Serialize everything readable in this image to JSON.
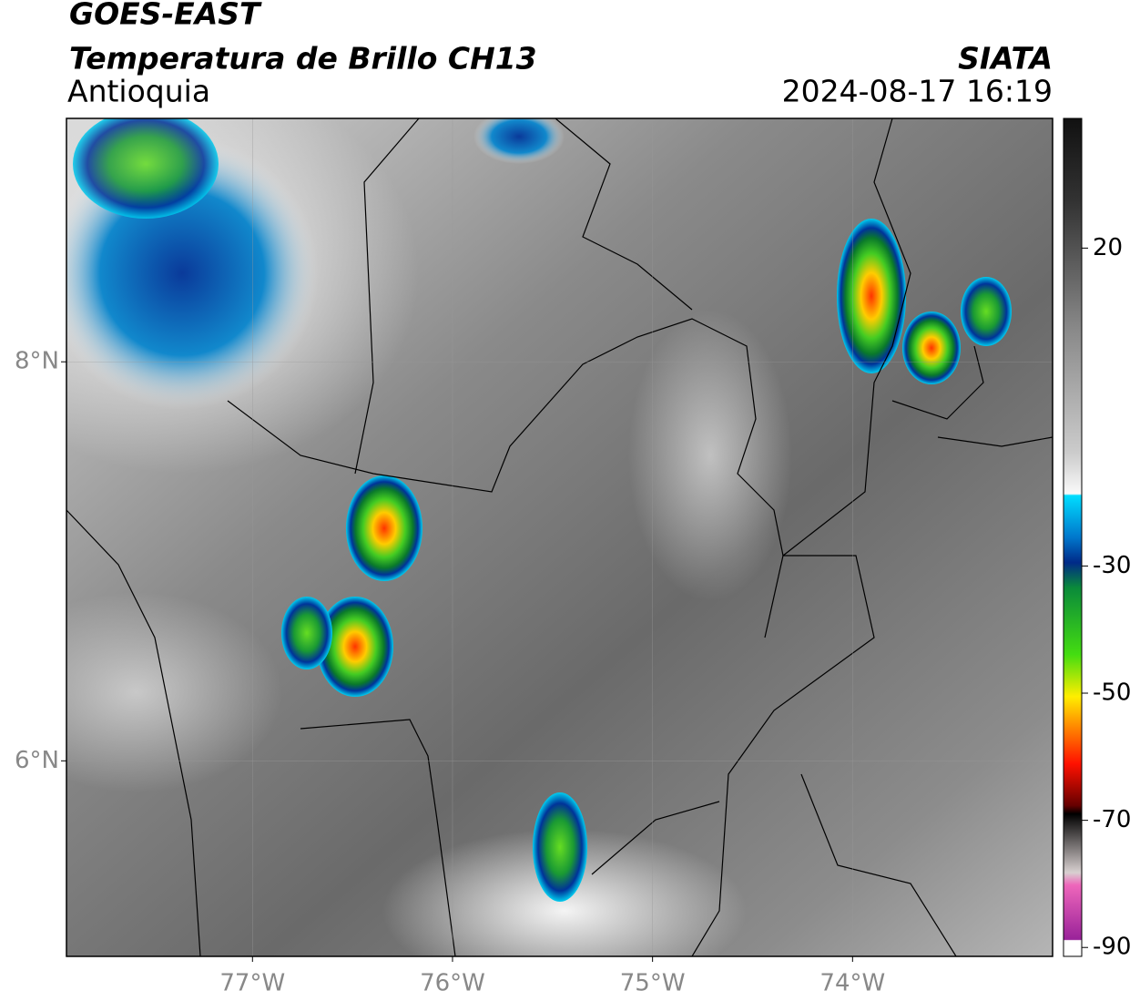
{
  "header": {
    "title": "GOES-EAST",
    "subtitle": "Temperatura de Brillo CH13",
    "region": "Antioquia",
    "source": "SIATA",
    "timestamp": "2024-08-17 16:19"
  },
  "map": {
    "xlim": [
      -77.93,
      -73.0
    ],
    "ylim": [
      5.02,
      9.22
    ],
    "xticks": [
      {
        "value": -77,
        "label": "77°W"
      },
      {
        "value": -76,
        "label": "76°W"
      },
      {
        "value": -75,
        "label": "75°W"
      },
      {
        "value": -74,
        "label": "74°W"
      }
    ],
    "yticks": [
      {
        "value": 8,
        "label": "8°N"
      },
      {
        "value": 6,
        "label": "6°N"
      }
    ]
  },
  "colorbar": {
    "lim": [
      -91.4,
      40.4
    ],
    "ticks": [
      20,
      -30,
      -50,
      -70,
      -90
    ]
  }
}
